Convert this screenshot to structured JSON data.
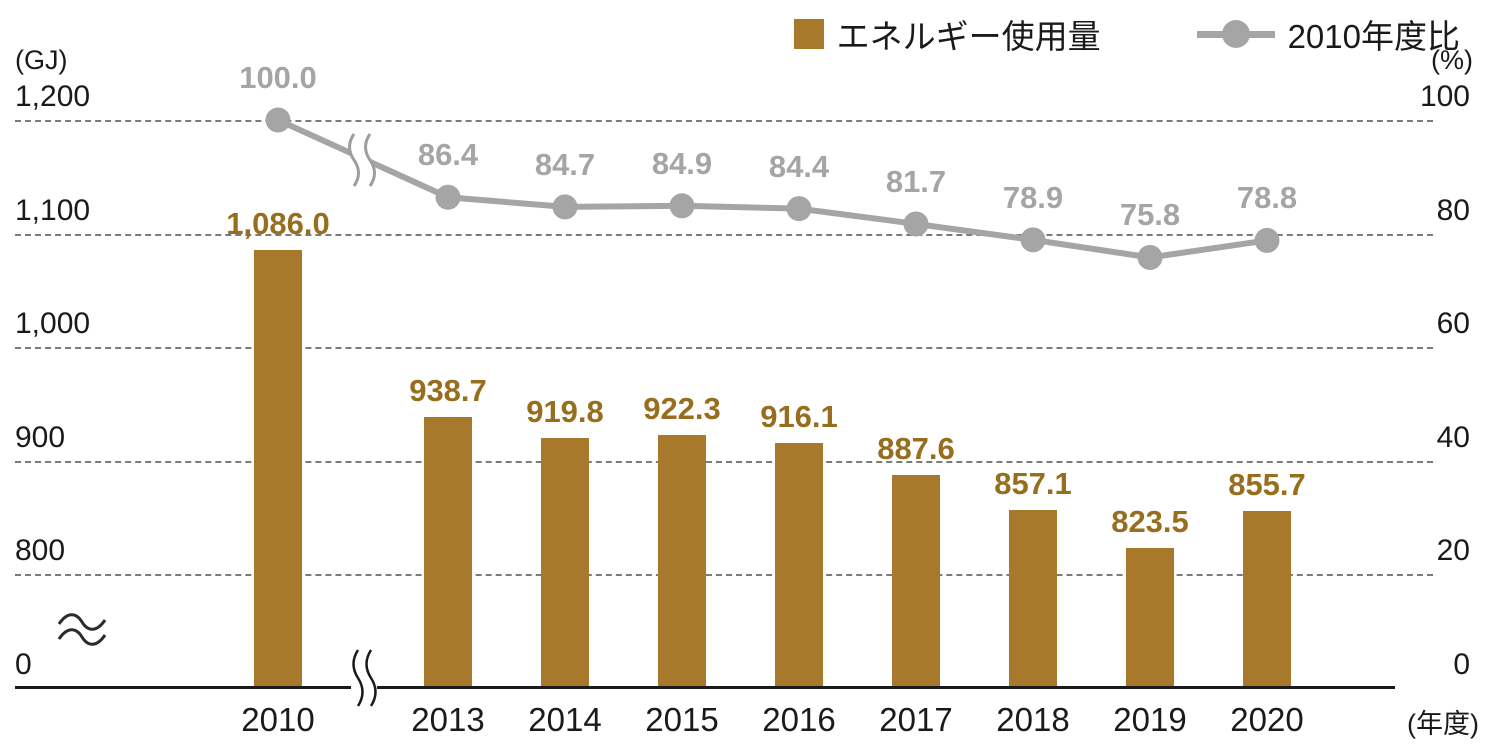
{
  "legend": {
    "bars_label": "エネルギー使用量",
    "line_label": "2010年度比"
  },
  "axes": {
    "left_unit": "(GJ)",
    "right_unit": "(%)",
    "x_unit": "(年度)",
    "left_ticks": [
      "1,200",
      "1,100",
      "1,000",
      "900",
      "800",
      "0"
    ],
    "right_ticks": [
      "100",
      "80",
      "60",
      "40",
      "20",
      "0"
    ]
  },
  "chart_data": {
    "type": "bar+line combo",
    "title": "",
    "categories": [
      "2010",
      "2013",
      "2014",
      "2015",
      "2016",
      "2017",
      "2018",
      "2019",
      "2020"
    ],
    "x_axis_label": "(年度)",
    "x_break_between": [
      "2010",
      "2013"
    ],
    "grid": "dashed horizontal gridlines",
    "legend_position": "top-right",
    "left_axis": {
      "unit": "GJ",
      "ticks": [
        0,
        800,
        900,
        1000,
        1100,
        1200
      ],
      "break_between": [
        0,
        800
      ]
    },
    "right_axis": {
      "unit": "%",
      "ticks": [
        0,
        20,
        40,
        60,
        80,
        100
      ],
      "range": [
        0,
        100
      ]
    },
    "series": [
      {
        "name": "エネルギー使用量",
        "type": "bar",
        "axis": "left",
        "unit": "GJ",
        "values": [
          1086.0,
          938.7,
          919.8,
          922.3,
          916.1,
          887.6,
          857.1,
          823.5,
          855.7
        ],
        "labels": [
          "1,086.0",
          "938.7",
          "919.8",
          "922.3",
          "916.1",
          "887.6",
          "857.1",
          "823.5",
          "855.7"
        ]
      },
      {
        "name": "2010年度比",
        "type": "line",
        "axis": "right",
        "unit": "%",
        "values": [
          100.0,
          86.4,
          84.7,
          84.9,
          84.4,
          81.7,
          78.9,
          75.8,
          78.8
        ],
        "labels": [
          "100.0",
          "86.4",
          "84.7",
          "84.9",
          "84.4",
          "81.7",
          "78.9",
          "75.8",
          "78.8"
        ]
      }
    ]
  },
  "colors": {
    "bar": "#A9792B",
    "bar_label": "#976D1E",
    "line": "#A5A5A5",
    "grid": "#7A7A7A",
    "axis": "#1A1A1A"
  }
}
